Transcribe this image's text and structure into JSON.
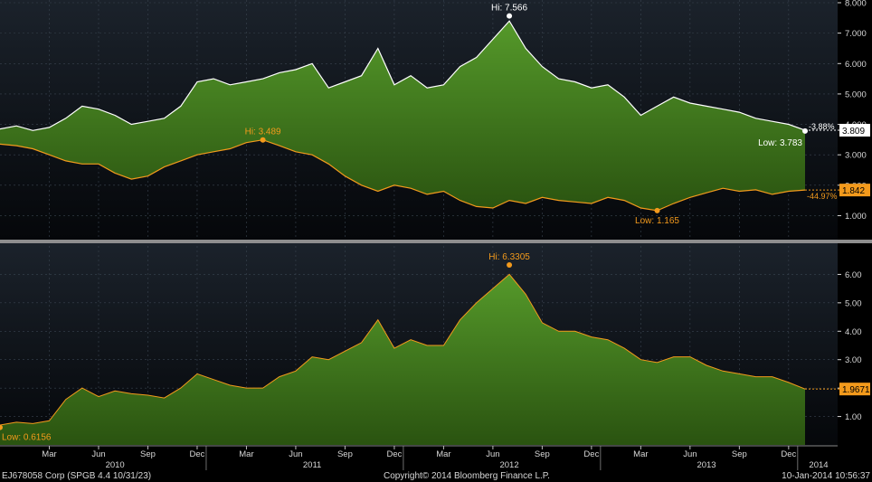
{
  "colors": {
    "background": "#0b0f14",
    "panel_top": "#1a2129",
    "panel_bottom": "#07090c",
    "area_fill": "#4a8a1f",
    "area_fill_dark": "#2f5c12",
    "white_line": "#ffffff",
    "orange_line": "#f39a1c",
    "grid": "#3a4450",
    "axis_text": "#d7d7d7",
    "separator": "#9a9a9a"
  },
  "footer": {
    "left": "EJ678058 Corp (SPGB 4.4 10/31/23)",
    "center": "Copyright© 2014 Bloomberg Finance L.P.",
    "right": "10-Jan-2014 10:56:37"
  },
  "x_axis": {
    "months": [
      "Mar",
      "Jun",
      "Sep",
      "Dec",
      "Mar",
      "Jun",
      "Sep",
      "Dec",
      "Mar",
      "Jun",
      "Sep",
      "Dec",
      "Mar",
      "Jun",
      "Sep",
      "Dec"
    ],
    "years": [
      "2010",
      "2011",
      "2012",
      "2013",
      "2014"
    ]
  },
  "chart_data": [
    {
      "type": "area",
      "ylim": [
        0.3,
        8.0
      ],
      "yticks": [
        "1.000",
        "2.000",
        "3.000",
        "4.000",
        "5.000",
        "6.000",
        "7.000",
        "8.000"
      ],
      "x_range": [
        "2009-12",
        "2014-01"
      ],
      "series": [
        {
          "kind": "upper line",
          "points": [
            [
              "2009-12",
              3.85
            ],
            [
              "2010-01",
              3.95
            ],
            [
              "2010-02",
              3.8
            ],
            [
              "2010-03",
              3.9
            ],
            [
              "2010-04",
              4.2
            ],
            [
              "2010-05",
              4.6
            ],
            [
              "2010-06",
              4.5
            ],
            [
              "2010-07",
              4.3
            ],
            [
              "2010-08",
              4.0
            ],
            [
              "2010-09",
              4.1
            ],
            [
              "2010-10",
              4.2
            ],
            [
              "2010-11",
              4.6
            ],
            [
              "2010-12",
              5.4
            ],
            [
              "2011-01",
              5.5
            ],
            [
              "2011-02",
              5.3
            ],
            [
              "2011-03",
              5.4
            ],
            [
              "2011-04",
              5.5
            ],
            [
              "2011-05",
              5.7
            ],
            [
              "2011-06",
              5.8
            ],
            [
              "2011-07",
              6.0
            ],
            [
              "2011-08",
              5.2
            ],
            [
              "2011-09",
              5.4
            ],
            [
              "2011-10",
              5.6
            ],
            [
              "2011-11",
              6.5
            ],
            [
              "2011-12",
              5.3
            ],
            [
              "2012-01",
              5.6
            ],
            [
              "2012-02",
              5.2
            ],
            [
              "2012-03",
              5.3
            ],
            [
              "2012-04",
              5.9
            ],
            [
              "2012-05",
              6.2
            ],
            [
              "2012-06",
              6.8
            ],
            [
              "2012-07",
              7.4
            ],
            [
              "2012-08",
              6.5
            ],
            [
              "2012-09",
              5.9
            ],
            [
              "2012-10",
              5.5
            ],
            [
              "2012-11",
              5.4
            ],
            [
              "2012-12",
              5.2
            ],
            [
              "2013-01",
              5.3
            ],
            [
              "2013-02",
              4.9
            ],
            [
              "2013-03",
              4.3
            ],
            [
              "2013-04",
              4.6
            ],
            [
              "2013-05",
              4.9
            ],
            [
              "2013-06",
              4.7
            ],
            [
              "2013-07",
              4.6
            ],
            [
              "2013-08",
              4.5
            ],
            [
              "2013-09",
              4.4
            ],
            [
              "2013-10",
              4.2
            ],
            [
              "2013-11",
              4.1
            ],
            [
              "2013-12",
              4.0
            ],
            [
              "2014-01",
              3.809
            ]
          ],
          "hi": {
            "label": "Hi: 7.566",
            "x": "2012-07",
            "y": 7.566
          },
          "low": {
            "label": "Low: 3.783",
            "x": "2014-01",
            "y": 3.783
          },
          "change_label": "-3.88%",
          "last_value": "3.809"
        },
        {
          "kind": "lower line",
          "points": [
            [
              "2009-12",
              3.35
            ],
            [
              "2010-01",
              3.3
            ],
            [
              "2010-02",
              3.2
            ],
            [
              "2010-03",
              3.0
            ],
            [
              "2010-04",
              2.8
            ],
            [
              "2010-05",
              2.7
            ],
            [
              "2010-06",
              2.7
            ],
            [
              "2010-07",
              2.4
            ],
            [
              "2010-08",
              2.2
            ],
            [
              "2010-09",
              2.3
            ],
            [
              "2010-10",
              2.6
            ],
            [
              "2010-11",
              2.8
            ],
            [
              "2010-12",
              3.0
            ],
            [
              "2011-01",
              3.1
            ],
            [
              "2011-02",
              3.2
            ],
            [
              "2011-03",
              3.4
            ],
            [
              "2011-04",
              3.489
            ],
            [
              "2011-05",
              3.3
            ],
            [
              "2011-06",
              3.1
            ],
            [
              "2011-07",
              3.0
            ],
            [
              "2011-08",
              2.7
            ],
            [
              "2011-09",
              2.3
            ],
            [
              "2011-10",
              2.0
            ],
            [
              "2011-11",
              1.8
            ],
            [
              "2011-12",
              2.0
            ],
            [
              "2012-01",
              1.9
            ],
            [
              "2012-02",
              1.7
            ],
            [
              "2012-03",
              1.8
            ],
            [
              "2012-04",
              1.5
            ],
            [
              "2012-05",
              1.3
            ],
            [
              "2012-06",
              1.25
            ],
            [
              "2012-07",
              1.5
            ],
            [
              "2012-08",
              1.4
            ],
            [
              "2012-09",
              1.6
            ],
            [
              "2012-10",
              1.5
            ],
            [
              "2012-11",
              1.45
            ],
            [
              "2012-12",
              1.4
            ],
            [
              "2013-01",
              1.6
            ],
            [
              "2013-02",
              1.5
            ],
            [
              "2013-03",
              1.25
            ],
            [
              "2013-04",
              1.165
            ],
            [
              "2013-05",
              1.4
            ],
            [
              "2013-06",
              1.6
            ],
            [
              "2013-07",
              1.75
            ],
            [
              "2013-08",
              1.9
            ],
            [
              "2013-09",
              1.8
            ],
            [
              "2013-10",
              1.85
            ],
            [
              "2013-11",
              1.7
            ],
            [
              "2013-12",
              1.8
            ],
            [
              "2014-01",
              1.842
            ]
          ],
          "hi": {
            "label": "Hi: 3.489",
            "x": "2011-04",
            "y": 3.489
          },
          "low": {
            "label": "Low: 1.165",
            "x": "2013-04",
            "y": 1.165
          },
          "change_label": "-44.97%",
          "last_value": "1.842"
        }
      ]
    },
    {
      "type": "area",
      "ylim": [
        0.0,
        7.0
      ],
      "yticks": [
        "1.00",
        "2.00",
        "3.00",
        "4.00",
        "5.00",
        "6.00"
      ],
      "x_range": [
        "2009-12",
        "2014-01"
      ],
      "series": [
        {
          "kind": "spread",
          "points": [
            [
              "2009-12",
              0.7
            ],
            [
              "2010-01",
              0.8
            ],
            [
              "2010-02",
              0.75
            ],
            [
              "2010-03",
              0.85
            ],
            [
              "2010-04",
              1.6
            ],
            [
              "2010-05",
              2.0
            ],
            [
              "2010-06",
              1.7
            ],
            [
              "2010-07",
              1.9
            ],
            [
              "2010-08",
              1.8
            ],
            [
              "2010-09",
              1.75
            ],
            [
              "2010-10",
              1.65
            ],
            [
              "2010-11",
              2.0
            ],
            [
              "2010-12",
              2.5
            ],
            [
              "2011-01",
              2.3
            ],
            [
              "2011-02",
              2.1
            ],
            [
              "2011-03",
              2.0
            ],
            [
              "2011-04",
              2.0
            ],
            [
              "2011-05",
              2.4
            ],
            [
              "2011-06",
              2.6
            ],
            [
              "2011-07",
              3.1
            ],
            [
              "2011-08",
              3.0
            ],
            [
              "2011-09",
              3.3
            ],
            [
              "2011-10",
              3.6
            ],
            [
              "2011-11",
              4.4
            ],
            [
              "2011-12",
              3.4
            ],
            [
              "2012-01",
              3.7
            ],
            [
              "2012-02",
              3.5
            ],
            [
              "2012-03",
              3.5
            ],
            [
              "2012-04",
              4.4
            ],
            [
              "2012-05",
              5.0
            ],
            [
              "2012-06",
              5.5
            ],
            [
              "2012-07",
              6.0
            ],
            [
              "2012-08",
              5.3
            ],
            [
              "2012-09",
              4.3
            ],
            [
              "2012-10",
              4.0
            ],
            [
              "2012-11",
              4.0
            ],
            [
              "2012-12",
              3.8
            ],
            [
              "2013-01",
              3.7
            ],
            [
              "2013-02",
              3.4
            ],
            [
              "2013-03",
              3.0
            ],
            [
              "2013-04",
              2.9
            ],
            [
              "2013-05",
              3.1
            ],
            [
              "2013-06",
              3.1
            ],
            [
              "2013-07",
              2.8
            ],
            [
              "2013-08",
              2.6
            ],
            [
              "2013-09",
              2.5
            ],
            [
              "2013-10",
              2.4
            ],
            [
              "2013-11",
              2.4
            ],
            [
              "2013-12",
              2.2
            ],
            [
              "2014-01",
              1.9671
            ]
          ],
          "hi": {
            "label": "Hi: 6.3305",
            "x": "2012-07",
            "y": 6.3305
          },
          "low": {
            "label": "Low: 0.6156",
            "x": "2009-12",
            "y": 0.6156
          },
          "last_value": "1.9671"
        }
      ]
    }
  ]
}
